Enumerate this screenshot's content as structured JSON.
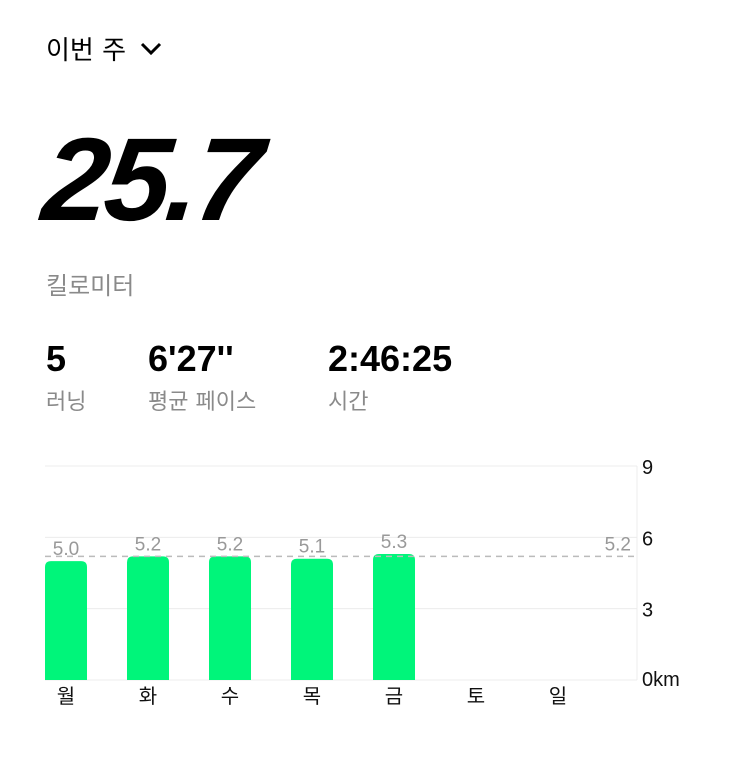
{
  "header": {
    "period_label": "이번 주",
    "dropdown_icon": "chevron-down-icon"
  },
  "summary": {
    "distance": "25.7",
    "distance_unit": "킬로미터"
  },
  "stats": [
    {
      "value": "5",
      "label": "러닝"
    },
    {
      "value": "6'27''",
      "label": "평균 페이스"
    },
    {
      "value": "2:46:25",
      "label": "시간"
    }
  ],
  "chart_data": {
    "type": "bar",
    "categories": [
      "월",
      "화",
      "수",
      "목",
      "금",
      "토",
      "일"
    ],
    "values": [
      5.0,
      5.2,
      5.2,
      5.1,
      5.3,
      null,
      null
    ],
    "value_labels": [
      "5.0",
      "5.2",
      "5.2",
      "5.1",
      "5.3",
      "",
      ""
    ],
    "average": 5.2,
    "average_label": "5.2",
    "ylim": [
      0,
      9
    ],
    "yticks": [
      "0km",
      "3",
      "6",
      "9"
    ],
    "ytick_values": [
      0,
      3,
      6,
      9
    ],
    "grid": true,
    "bar_color": "#00F57A"
  }
}
